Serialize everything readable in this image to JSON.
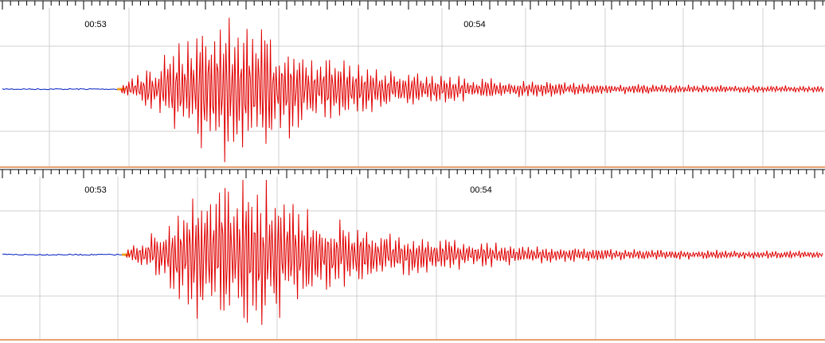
{
  "panels": [
    {
      "time_labels": [
        "00:53",
        "00:54"
      ]
    },
    {
      "time_labels": [
        "00:53",
        "00:54"
      ]
    }
  ]
}
